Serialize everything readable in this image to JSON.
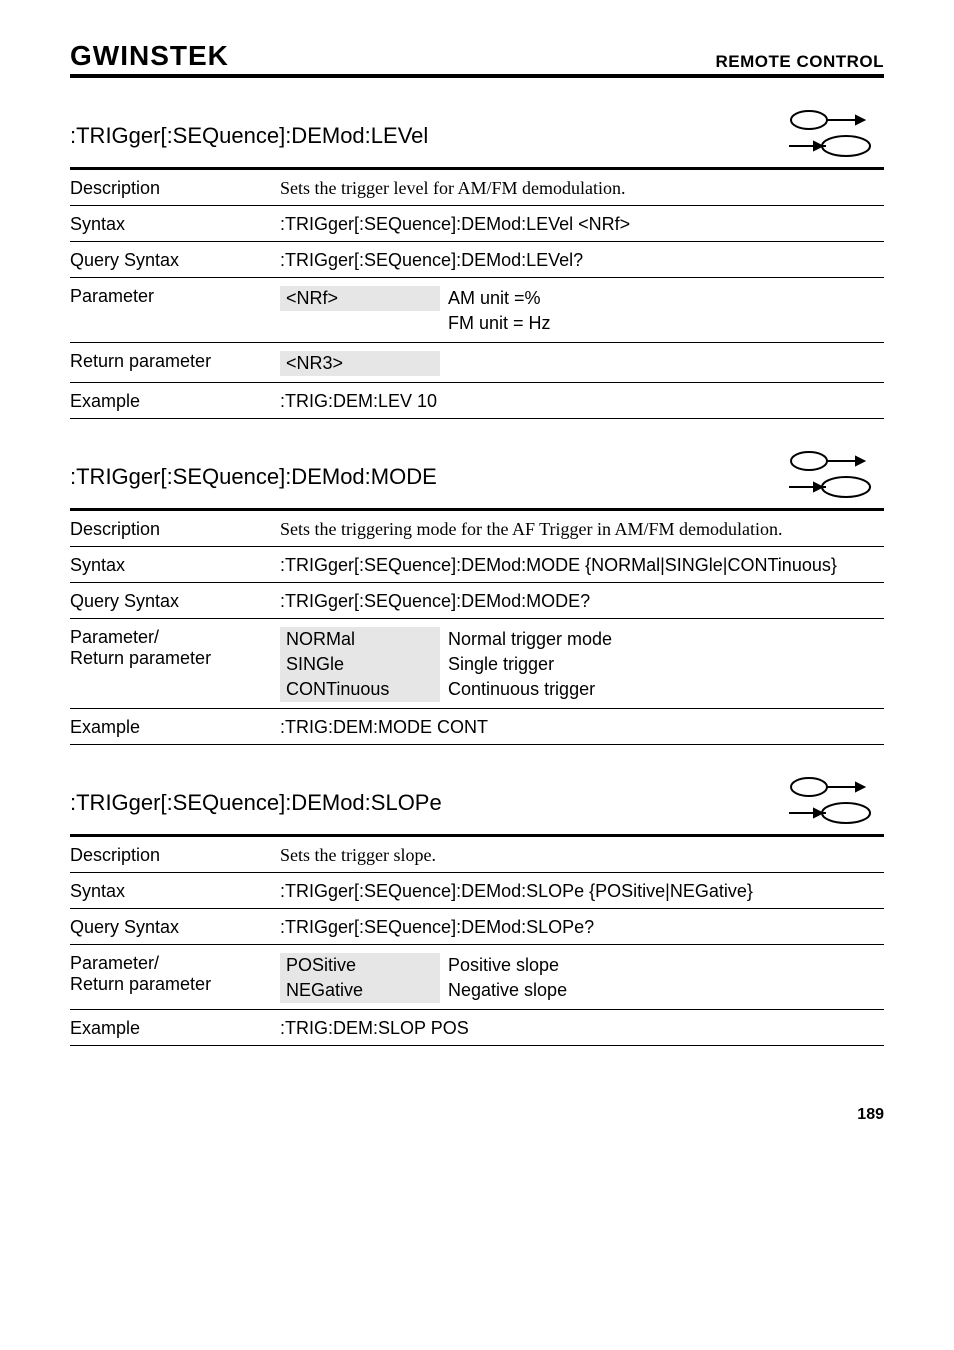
{
  "header": {
    "logo": "GWINSTEK",
    "title": "REMOTE CONTROL"
  },
  "sections": [
    {
      "title": ":TRIGger[:SEQuence]:DEMod:LEVel",
      "rows": [
        {
          "label": "Description",
          "serif": true,
          "full": "Sets the trigger level for AM/FM demodulation."
        },
        {
          "label": "Syntax",
          "full": ":TRIGger[:SEQuence]:DEMod:LEVel <NRf>"
        },
        {
          "label": "Query Syntax",
          "full": ":TRIGger[:SEQuence]:DEMod:LEVel?"
        },
        {
          "label": "Parameter",
          "mid": [
            "<NRf>"
          ],
          "right": [
            "AM unit =%",
            "FM unit = Hz"
          ]
        },
        {
          "label": "Return parameter",
          "mid": [
            "<NR3>"
          ],
          "right": [
            ""
          ]
        },
        {
          "label": "Example",
          "full": ":TRIG:DEM:LEV 10"
        }
      ]
    },
    {
      "title": ":TRIGger[:SEQuence]:DEMod:MODE",
      "rows": [
        {
          "label": "Description",
          "serif": true,
          "full": "Sets the triggering mode for the AF Trigger in AM/FM demodulation."
        },
        {
          "label": "Syntax",
          "full": ":TRIGger[:SEQuence]:DEMod:MODE {NORMal|SINGle|CONTinuous}"
        },
        {
          "label": "Query Syntax",
          "full": ":TRIGger[:SEQuence]:DEMod:MODE?"
        },
        {
          "label": "Parameter/ Return parameter",
          "labelLines": [
            "Parameter/",
            "Return parameter"
          ],
          "mid": [
            "NORMal",
            "SINGle",
            "CONTinuous"
          ],
          "right": [
            "Normal trigger mode",
            "Single trigger",
            "Continuous trigger"
          ]
        },
        {
          "label": "Example",
          "full": ":TRIG:DEM:MODE CONT"
        }
      ]
    },
    {
      "title": ":TRIGger[:SEQuence]:DEMod:SLOPe",
      "rows": [
        {
          "label": "Description",
          "serif": true,
          "full": "Sets the trigger slope."
        },
        {
          "label": "Syntax",
          "full": ":TRIGger[:SEQuence]:DEMod:SLOPe {POSitive|NEGative}"
        },
        {
          "label": "Query Syntax",
          "full": ":TRIGger[:SEQuence]:DEMod:SLOPe?"
        },
        {
          "label": "Parameter/ Return parameter",
          "labelLines": [
            "Parameter/",
            "Return parameter"
          ],
          "mid": [
            "POSitive",
            "NEGative"
          ],
          "right": [
            "Positive slope",
            "Negative slope"
          ]
        },
        {
          "label": "Example",
          "full": ":TRIG:DEM:SLOP POS"
        }
      ]
    }
  ],
  "pageNumber": "189",
  "styling": {
    "colors": {
      "text": "#000000",
      "background": "#ffffff",
      "shadedCell": "#e6e6e6",
      "rule": "#000000"
    },
    "fonts": {
      "body": "Arial, Helvetica, sans-serif",
      "serif": "Book Antiqua, Palatino, Georgia, serif",
      "sectionTitleSize": 22,
      "bodySize": 18,
      "labelSize": 18,
      "headerTitleSize": 17,
      "logoSize": 28
    },
    "layout": {
      "pageWidth": 954,
      "labelColWidth": 210,
      "midColWidth": 160,
      "thickRuleWidth": 3,
      "thinRuleWidth": 1,
      "headerRuleWidth": 4
    }
  }
}
